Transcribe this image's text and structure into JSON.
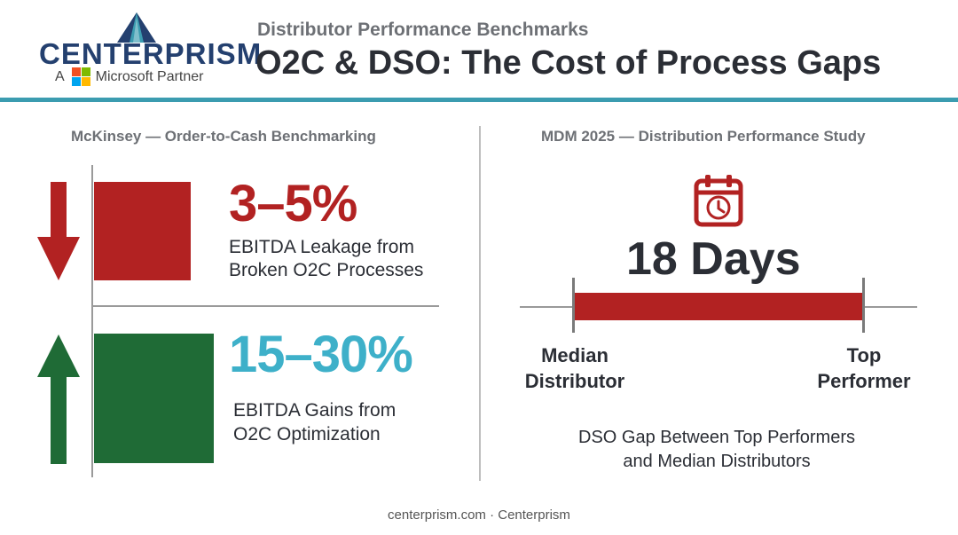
{
  "brand": {
    "logo_word": "CENTERPRISM",
    "partner_prefix": "A",
    "partner_text": "Microsoft Partner",
    "navy": "#24406f",
    "ms_colors": [
      "#f25022",
      "#7fba00",
      "#00a4ef",
      "#ffb900"
    ]
  },
  "header": {
    "kicker": "Distributor Performance Benchmarks",
    "title": "O2C & DSO: The Cost of Process Gaps",
    "rule_color": "#3b9cb0"
  },
  "left_section": {
    "title": "McKinsey — Order-to-Cash Benchmarking",
    "metric1": {
      "value": "3–5%",
      "line1": "EBITDA Leakage from",
      "line2": "Broken O2C Processes",
      "color": "#b22222",
      "icon": "arrow-down-icon"
    },
    "metric2": {
      "value": "15–30%",
      "line1": "EBITDA Gains from",
      "line2": "O2C Optimization",
      "color": "#3eb0c9",
      "box_color": "#1f6b36",
      "icon": "arrow-up-icon"
    }
  },
  "right_section": {
    "title": "MDM 2025 — Distribution Performance Study",
    "icon": "calendar-clock-icon",
    "headline": "18 Days",
    "left_label_1": "Median",
    "left_label_2": "Distributor",
    "right_label_1": "Top",
    "right_label_2": "Performer",
    "caption_1": "DSO Gap Between Top Performers",
    "caption_2": "and Median Distributors",
    "bar_color": "#b22222"
  },
  "footer": {
    "text": "centerprism.com · Centerprism"
  }
}
